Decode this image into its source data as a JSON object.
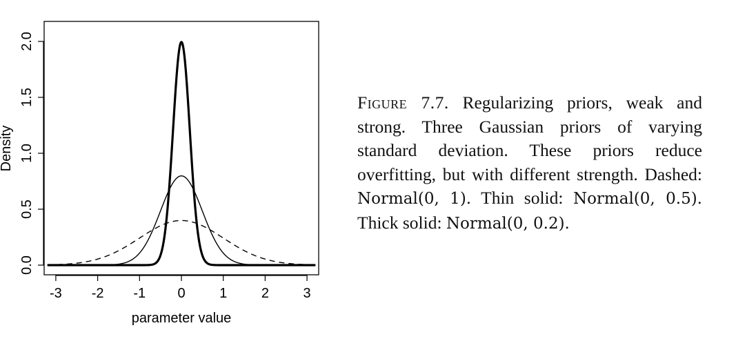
{
  "chart_data": {
    "type": "line",
    "xlabel": "parameter value",
    "ylabel": "Density",
    "xlim": [
      -3.2,
      3.2
    ],
    "ylim": [
      0,
      2.0
    ],
    "xticks": [
      -3,
      -2,
      -1,
      0,
      1,
      2,
      3
    ],
    "yticks": [
      0.0,
      0.5,
      1.0,
      1.5,
      2.0
    ],
    "xtick_labels": [
      "-3",
      "-2",
      "-1",
      "0",
      "1",
      "2",
      "3"
    ],
    "ytick_labels": [
      "0.0",
      "0.5",
      "1.0",
      "1.5",
      "2.0"
    ],
    "series": [
      {
        "distribution": "Normal",
        "mean": 0,
        "sd": 1,
        "style": "dashed",
        "peak": 0.399
      },
      {
        "distribution": "Normal",
        "mean": 0,
        "sd": 0.5,
        "style": "thin solid",
        "peak": 0.798
      },
      {
        "distribution": "Normal",
        "mean": 0,
        "sd": 0.2,
        "style": "thick solid",
        "peak": 1.995
      }
    ],
    "grid": false,
    "legend": "none"
  },
  "caption": {
    "label": "Figure 7.7.",
    "text_1": "Regularizing priors, weak and strong. Three Gaussian priors of varying standard deviation. These priors reduce overfitting, but with different strength. Dashed: ",
    "math_1": "Normal(0, 1).",
    "text_2": " Thin solid: ",
    "math_2": "Normal(0, 0.5).",
    "text_3": " Thick solid: ",
    "math_3": "Normal(0, 0.2)."
  }
}
